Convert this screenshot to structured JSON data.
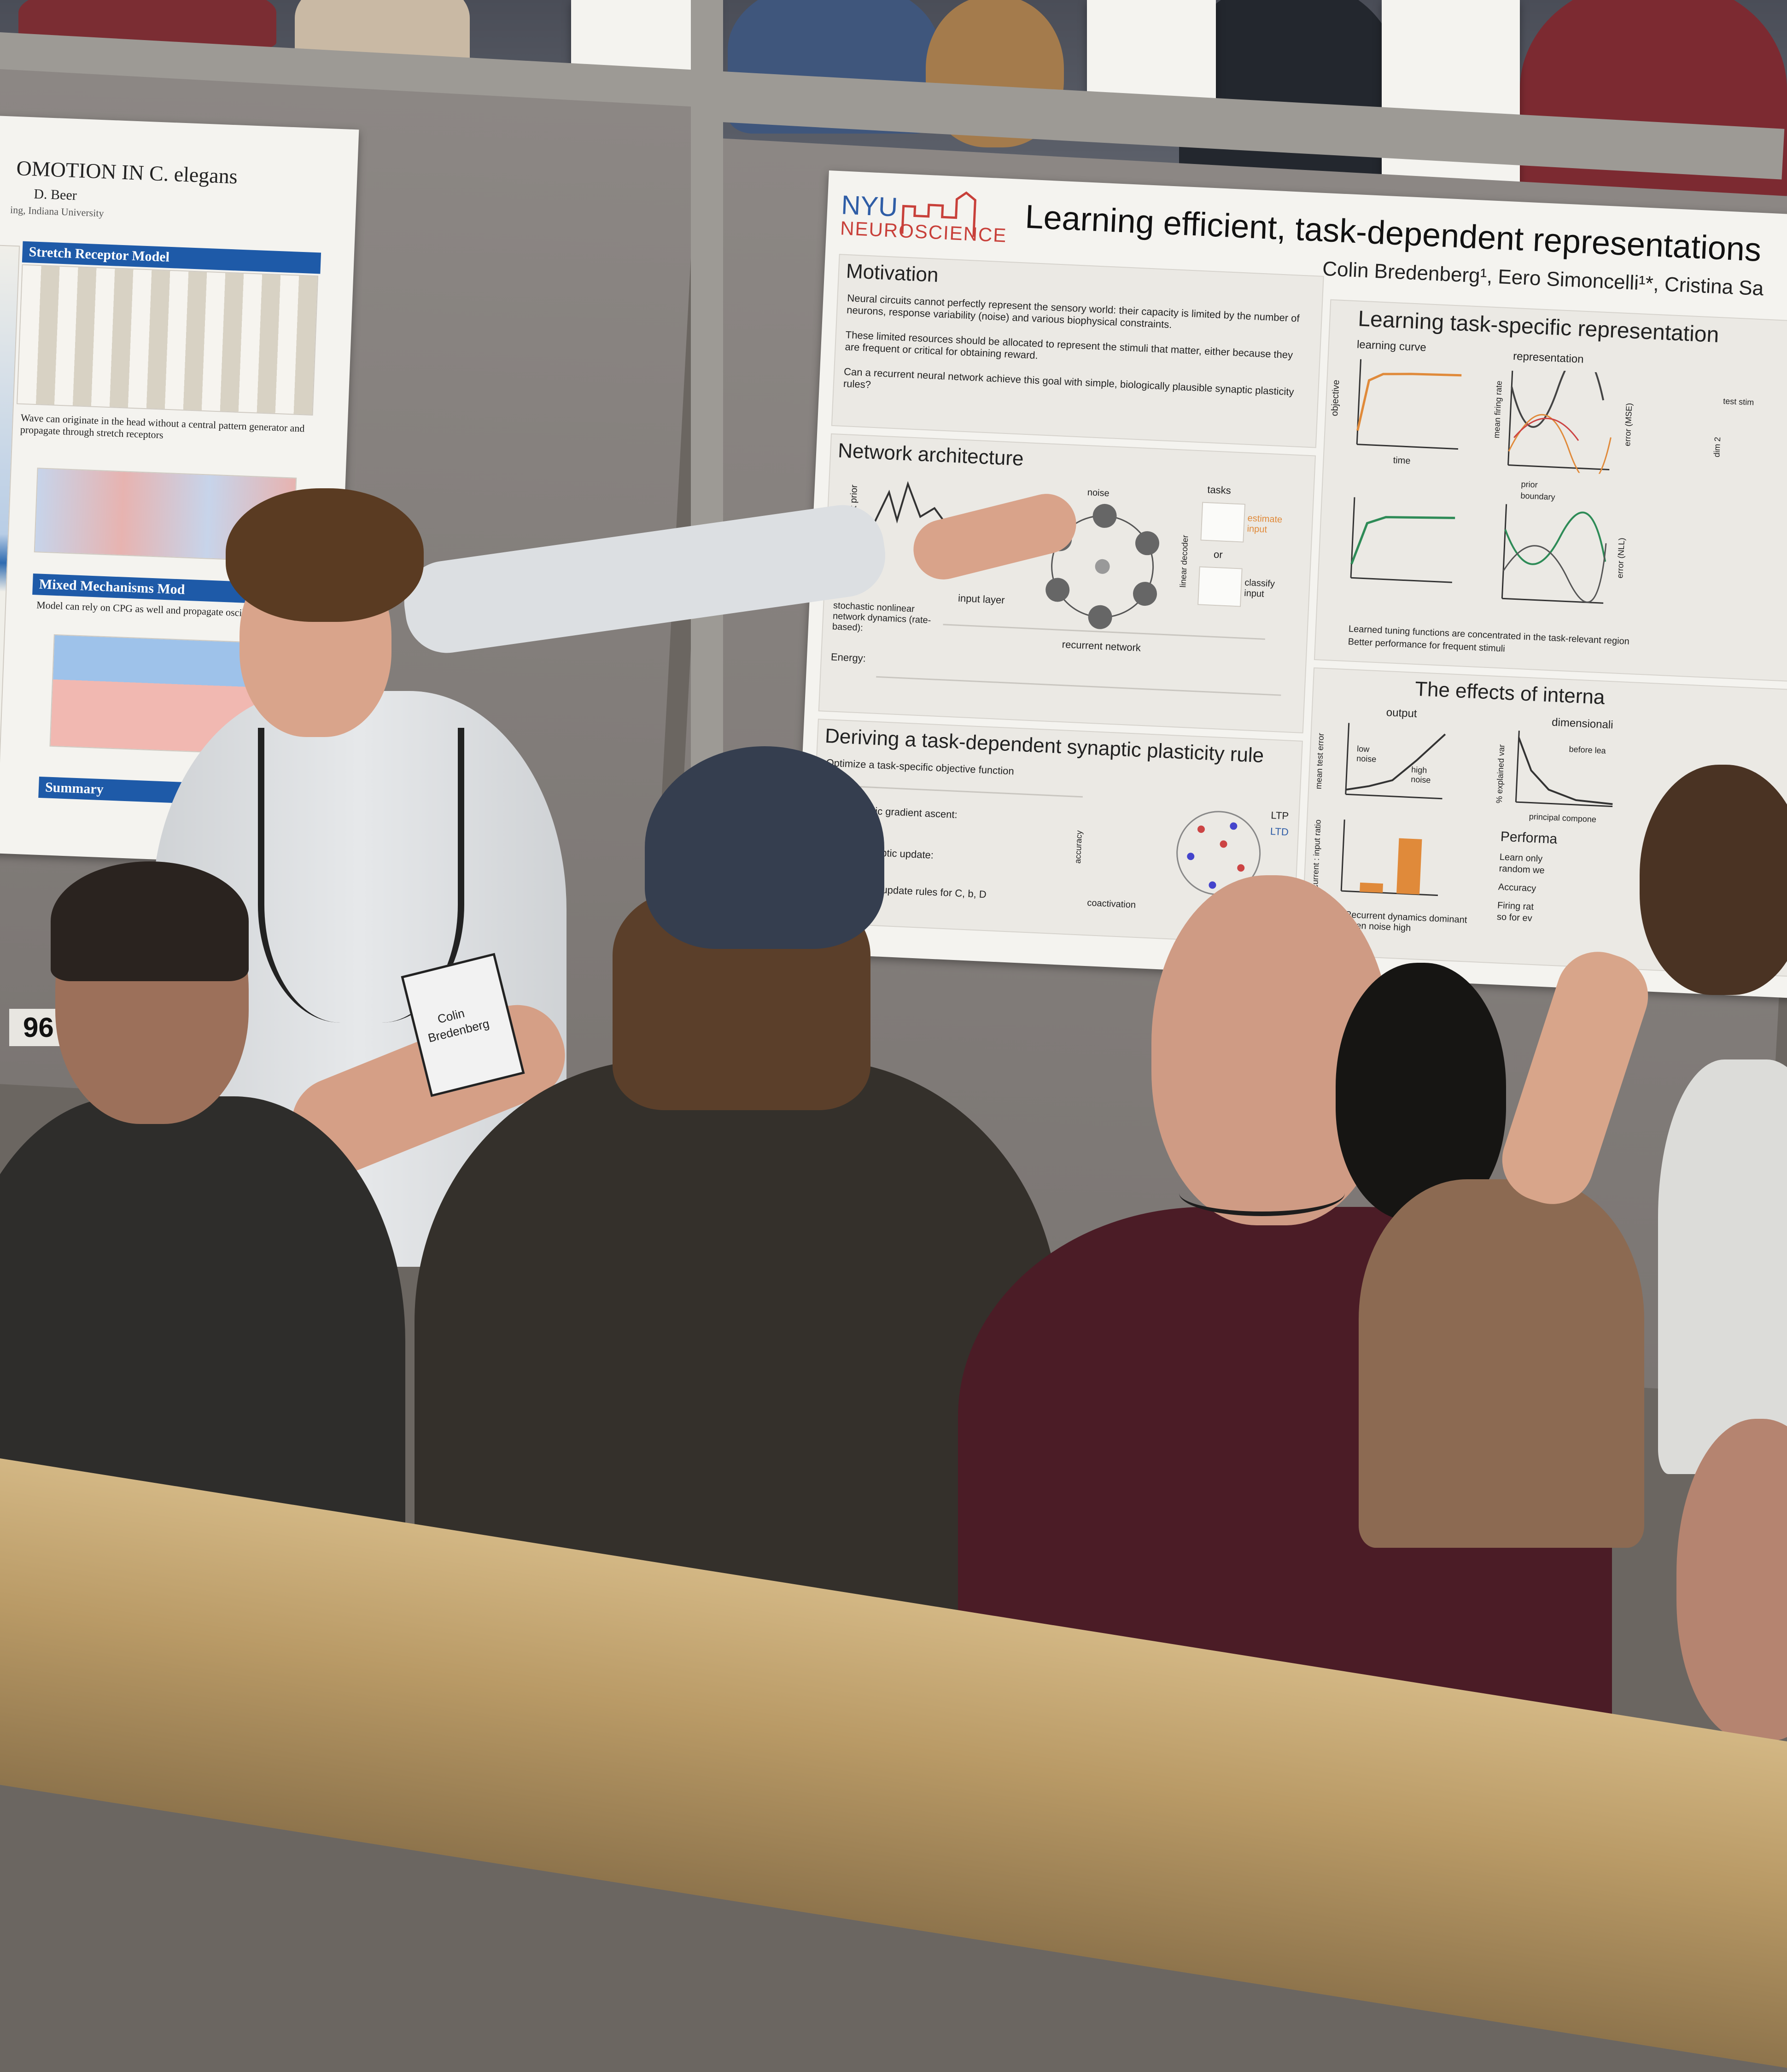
{
  "board_number": "96",
  "left_poster": {
    "title_fragment": "OMOTION IN C. elegans",
    "author_fragment": "D. Beer",
    "affiliation_fragment": "ing, Indiana University",
    "sections": [
      "Stretch Receptor Model",
      "Mixed Mechanisms Mod",
      "Summary"
    ],
    "caption_stretch": "Wave can originate in the head without a central pattern generator and propagate through stretch receptors",
    "caption_mixed": "Model can rely on CPG as well and propagate oscillations"
  },
  "main_poster": {
    "logo_top": "NYU",
    "logo_bottom": "NEUROSCIENCE",
    "title": "Learning efficient, task-dependent representations",
    "authors": "Colin Bredenberg¹, Eero Simoncelli¹*, Cristina Sa",
    "motivation": {
      "heading": "Motivation",
      "bullets": [
        "Neural circuits cannot perfectly represent the sensory world: their capacity is limited by the number of neurons, response variability (noise) and various biophysical constraints.",
        "These limited resources should be allocated to represent the stimuli that matter, either because they are frequent or critical for obtaining reward.",
        "Can a recurrent neural network achieve this goal with simple, biologically plausible synaptic plasticity rules?"
      ]
    },
    "network": {
      "heading": "Network architecture",
      "labels": {
        "input_prior": "input prior",
        "noise": "noise",
        "tasks": "tasks",
        "input_layer": "input layer",
        "recurrent_network": "recurrent network",
        "linear_decoder": "linear decoder",
        "estimate": "estimate input",
        "or": "or",
        "classify": "classify input",
        "dynamics": "stochastic nonlinear network dynamics (rate-based):",
        "energy": "Energy:"
      }
    },
    "deriving": {
      "heading": "Deriving a task-dependent synaptic plasticity rule",
      "lines": [
        "Optimize a task-specific objective function",
        "by stochastic gradient ascent:",
        "giving a synaptic update:",
        "*Similar local update rules for C, b, D"
      ],
      "labels": {
        "coactivation": "coactivation",
        "accuracy": "accuracy",
        "ltp": "LTP",
        "ltd": "LTD"
      }
    },
    "learning": {
      "heading": "Learning task-specific representation",
      "curve": "learning curve",
      "representation": "representation",
      "objective": "objective",
      "time": "time",
      "mean_firing_rate": "mean firing rate",
      "prior": "prior",
      "boundary": "boundary",
      "error_mse": "error (MSE)",
      "error_nll": "error (NLL)",
      "test_stim": "test stim",
      "dim2": "dim 2",
      "bullets": [
        "Learned tuning functions are concentrated in the task-relevant region",
        "Better performance for frequent stimuli"
      ]
    },
    "effects": {
      "heading": "The effects of interna",
      "output": "output",
      "dimensionality": "dimensionali",
      "mean_test_error": "mean test error",
      "low_noise": "low noise",
      "high_noise": "high noise",
      "recurrent_input_ratio": "recurrent : input ratio",
      "explained_var": "% explained var",
      "principal_components": "principal compone",
      "before_learning": "before lea",
      "recurrent_note": "Recurrent dynamics dominant when noise high",
      "performance": "Performa",
      "perf_bullets": [
        "Learn only",
        "random we",
        "Accuracy",
        "Firing rat",
        "so for ev"
      ]
    }
  },
  "badge": {
    "name_line1": "Colin",
    "name_line2": "Bredenberg"
  },
  "colors": {
    "board": "#7f7a77",
    "poster": "#f4f3ef",
    "left_poster_accent": "#1e5aa8",
    "nyu_red": "#c8403a",
    "nyu_blue": "#2f5da6",
    "shirt": "#dfe1e3",
    "maroon_sweater": "#4b1c26",
    "dark_jacket": "#33302c"
  }
}
